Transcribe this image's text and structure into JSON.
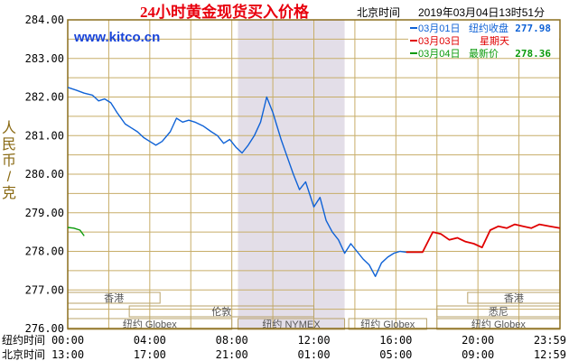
{
  "header": {
    "title": "24小时黄金现货买入价格",
    "website": "www.kitco.cn",
    "tz_label": "北京时间",
    "timestamp": "2019年03月04日13时51分"
  },
  "colors": {
    "grid": "#c7ad68",
    "frame": "#8c6e1d",
    "title": "#e8000d",
    "website": "#1a45d8",
    "axis_text": "#000000",
    "ylabel": "#8a6a14",
    "shade": "#e3dee8",
    "line_mar01": "#0f62d6",
    "line_mar03": "#e00000",
    "line_mar04": "#0a9a0a",
    "session_box": "#b9a36a"
  },
  "legend": {
    "items": [
      {
        "date": "03月01日",
        "label": "纽约收盘",
        "value": "277.98",
        "color": "#0f62d6"
      },
      {
        "date": "03月03日",
        "label": "星期天",
        "value": "",
        "color": "#e00000"
      },
      {
        "date": "03月04日",
        "label": "最新价",
        "value": "278.36",
        "color": "#0a9a0a"
      }
    ]
  },
  "x_axis": {
    "row_labels": [
      "纽约时间",
      "北京时间"
    ],
    "ticks_ny": [
      "00:00",
      "04:00",
      "08:00",
      "12:00",
      "16:00",
      "20:00",
      "23:59"
    ],
    "ticks_bj": [
      "13:00",
      "17:00",
      "21:00",
      "01:00",
      "05:00",
      "09:00",
      "12:59"
    ]
  },
  "sessions": {
    "markets": [
      {
        "name": "香港",
        "row": 0,
        "start": 0.0,
        "end": 4.5
      },
      {
        "name": "香港",
        "row": 0,
        "start": 19.5,
        "end": 24.0
      },
      {
        "name": "伦敦",
        "row": 1,
        "start": 3.0,
        "end": 12.0
      },
      {
        "name": "悉尼",
        "row": 1,
        "start": 18.0,
        "end": 24.0
      },
      {
        "name": "纽约 Globex",
        "row": 2,
        "start": 0.0,
        "end": 8.0
      },
      {
        "name": "纽约 NYMEX",
        "row": 2,
        "start": 8.3,
        "end": 13.5
      },
      {
        "name": "纽约 Globex",
        "row": 2,
        "start": 13.7,
        "end": 17.5
      },
      {
        "name": "纽约 Globex",
        "row": 2,
        "start": 18.0,
        "end": 24.0
      }
    ]
  },
  "chart_data": {
    "type": "line",
    "ylabel": "人民币/克",
    "ylim": [
      276.0,
      284.0
    ],
    "yticks": [
      "276.00",
      "277.00",
      "278.00",
      "279.00",
      "280.00",
      "281.00",
      "282.00",
      "283.00",
      "284.00"
    ],
    "xlim": [
      0,
      24
    ],
    "shaded_range": [
      8.3,
      13.5
    ],
    "grid": true,
    "series": [
      {
        "name": "03月01日",
        "color": "#0f62d6",
        "x": [
          0.0,
          0.4,
          0.8,
          1.2,
          1.5,
          1.8,
          2.1,
          2.4,
          2.8,
          3.1,
          3.4,
          3.7,
          4.0,
          4.3,
          4.6,
          5.0,
          5.3,
          5.6,
          5.9,
          6.2,
          6.6,
          7.0,
          7.3,
          7.6,
          7.9,
          8.2,
          8.5,
          8.8,
          9.1,
          9.4,
          9.7,
          10.0,
          10.4,
          10.7,
          11.0,
          11.3,
          11.6,
          12.0,
          12.3,
          12.6,
          12.9,
          13.2,
          13.5,
          13.8,
          14.1,
          14.4,
          14.7,
          15.0,
          15.3,
          15.6,
          15.9,
          16.2,
          16.5,
          16.8,
          17.0,
          17.3
        ],
        "y": [
          282.25,
          282.18,
          282.1,
          282.05,
          281.9,
          281.95,
          281.85,
          281.6,
          281.3,
          281.2,
          281.1,
          280.95,
          280.85,
          280.75,
          280.85,
          281.1,
          281.45,
          281.35,
          281.4,
          281.35,
          281.25,
          281.1,
          281.0,
          280.8,
          280.9,
          280.7,
          280.55,
          280.75,
          281.0,
          281.35,
          282.0,
          281.6,
          280.9,
          280.45,
          280.0,
          279.6,
          279.8,
          279.15,
          279.4,
          278.8,
          278.5,
          278.3,
          277.95,
          278.2,
          278.0,
          277.8,
          277.65,
          277.35,
          277.7,
          277.85,
          277.95,
          278.0,
          277.98,
          277.98,
          277.98,
          277.98
        ]
      },
      {
        "name": "03月03日",
        "color": "#e00000",
        "x": [
          16.5,
          17.3,
          17.8,
          18.2,
          18.6,
          19.0,
          19.4,
          19.8,
          20.2,
          20.6,
          21.0,
          21.4,
          21.8,
          22.2,
          22.6,
          23.0,
          23.5,
          24.0
        ],
        "y": [
          277.98,
          277.98,
          278.5,
          278.45,
          278.3,
          278.35,
          278.25,
          278.2,
          278.1,
          278.55,
          278.65,
          278.6,
          278.7,
          278.65,
          278.6,
          278.7,
          278.65,
          278.6
        ]
      },
      {
        "name": "03月04日",
        "color": "#0a9a0a",
        "x": [
          0.0,
          0.3,
          0.6,
          0.8
        ],
        "y": [
          278.62,
          278.6,
          278.55,
          278.4
        ]
      }
    ]
  }
}
